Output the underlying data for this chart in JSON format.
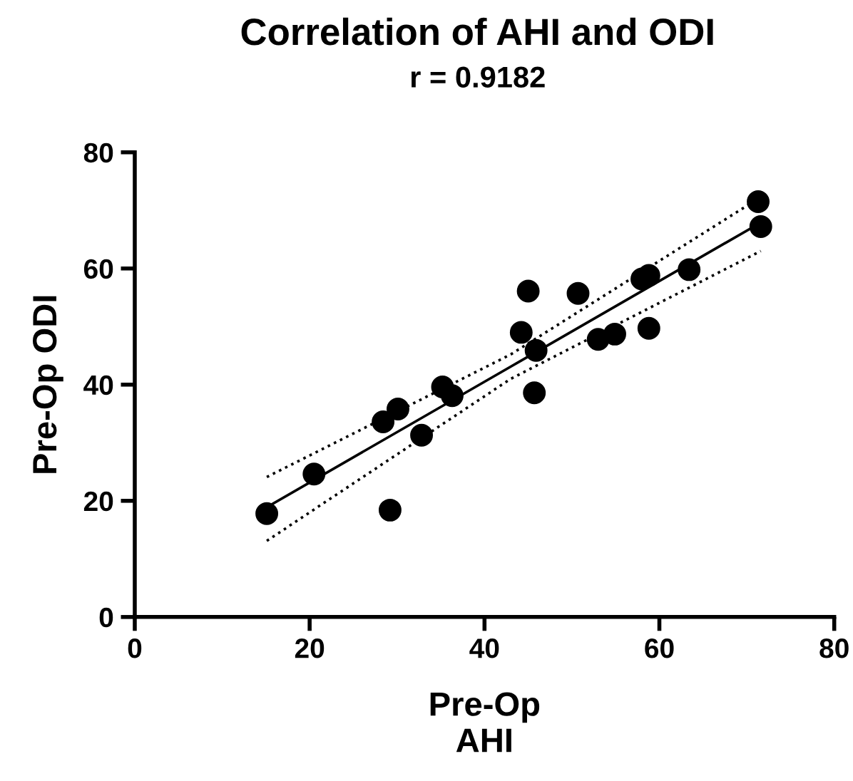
{
  "chart_data": {
    "type": "scatter",
    "title": "Correlation of AHI and ODI",
    "subtitle": "r = 0.9182",
    "xlabel": "Pre-Op\nAHI",
    "ylabel": "Pre-Op ODI",
    "xlim": [
      0,
      80
    ],
    "ylim": [
      0,
      80
    ],
    "xticks": [
      0,
      20,
      40,
      60,
      80
    ],
    "yticks": [
      0,
      20,
      40,
      60,
      80
    ],
    "grid": false,
    "legend": false,
    "series": [
      {
        "color": "#000000",
        "marker": "circle",
        "x": [
          15.1,
          20.5,
          29.2,
          28.4,
          30.1,
          32.8,
          35.2,
          36.3,
          44.2,
          45.0,
          45.9,
          45.7,
          50.7,
          53.0,
          54.9,
          58.0,
          58.8,
          58.8,
          63.4,
          71.3,
          71.6
        ],
        "values": [
          17.8,
          24.6,
          18.4,
          33.6,
          35.8,
          31.3,
          39.6,
          38.1,
          49.0,
          56.1,
          45.9,
          38.6,
          55.7,
          47.8,
          48.7,
          58.2,
          58.8,
          49.7,
          59.8,
          71.5,
          67.2
        ]
      },
      {
        "type": "line",
        "color": "#000000",
        "marker": "none",
        "line_style": "solid",
        "x": [
          15.1,
          43,
          71.6
        ],
        "values": [
          18.9,
          43.1,
          67.9
        ]
      },
      {
        "type": "line",
        "color": "#000000",
        "marker": "none",
        "line_style": "dotted",
        "x": [
          15.1,
          43,
          71.6
        ],
        "values": [
          24.1,
          45.2,
          72.3
        ]
      },
      {
        "type": "line",
        "color": "#000000",
        "marker": "none",
        "line_style": "dotted",
        "x": [
          15.1,
          43,
          71.6
        ],
        "values": [
          13.1,
          41.0,
          63.0
        ]
      }
    ]
  }
}
